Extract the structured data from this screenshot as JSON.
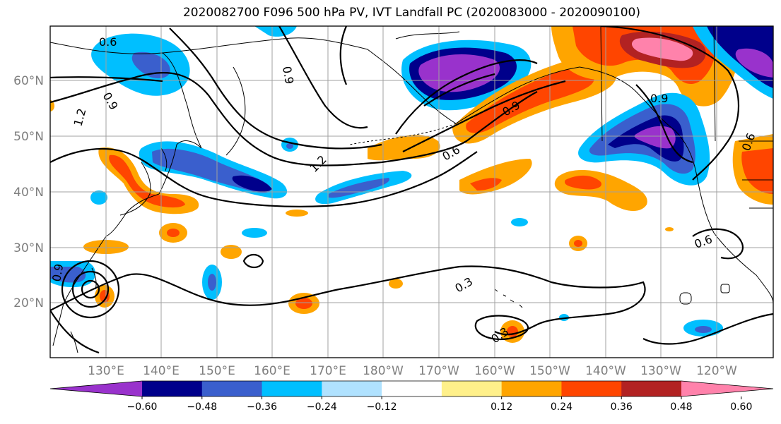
{
  "title": "2020082700 F096 500 hPa PV, IVT Landfall PC (2020083000 - 2020090100)",
  "map": {
    "lat_labels": [
      "60°N",
      "50°N",
      "40°N",
      "30°N",
      "20°N"
    ],
    "lon_labels": [
      "130°E",
      "140°E",
      "150°E",
      "160°E",
      "170°E",
      "180°W",
      "170°W",
      "160°W",
      "150°W",
      "140°W",
      "130°W",
      "120°W"
    ],
    "contour_labels": [
      "0.6",
      "0.9",
      "1.2",
      "0.9",
      "1.2",
      "0.6",
      "0.9",
      "0.9",
      "0.6",
      "0.3",
      "0.3",
      "0.9",
      "0.6"
    ]
  },
  "colorbar": {
    "ticks": [
      "−0.60",
      "−0.48",
      "−0.36",
      "−0.24",
      "−0.12",
      "0.12",
      "0.24",
      "0.36",
      "0.48",
      "0.60"
    ],
    "colors": [
      "#9932cc",
      "#00008b",
      "#3a5fcd",
      "#00bfff",
      "#b0e2ff",
      "#ffffff",
      "#fff08a",
      "#ffa500",
      "#ff4500",
      "#b22222",
      "#ff82ab"
    ]
  }
}
